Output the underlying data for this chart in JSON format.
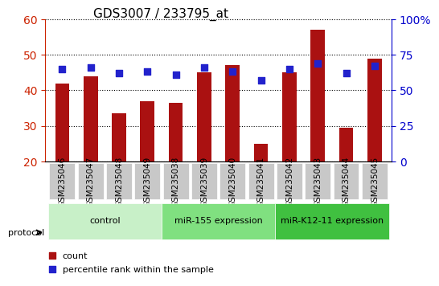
{
  "title": "GDS3007 / 233795_at",
  "samples": [
    "GSM235046",
    "GSM235047",
    "GSM235048",
    "GSM235049",
    "GSM235038",
    "GSM235039",
    "GSM235040",
    "GSM235041",
    "GSM235042",
    "GSM235043",
    "GSM235044",
    "GSM235045"
  ],
  "count_values": [
    42.0,
    44.0,
    33.5,
    37.0,
    36.5,
    45.0,
    47.0,
    25.0,
    45.0,
    57.0,
    29.5,
    49.0
  ],
  "percentile_values": [
    65,
    66,
    62,
    63,
    61,
    66,
    63,
    57,
    65,
    69,
    62,
    67
  ],
  "groups": [
    {
      "label": "control",
      "start": 0,
      "end": 4,
      "color": "#c8f0c8"
    },
    {
      "label": "miR-155 expression",
      "start": 4,
      "end": 8,
      "color": "#80e080"
    },
    {
      "label": "miR-K12-11 expression",
      "start": 8,
      "end": 12,
      "color": "#40c040"
    }
  ],
  "ylim_left": [
    20,
    60
  ],
  "ylim_right": [
    0,
    100
  ],
  "yticks_left": [
    20,
    30,
    40,
    50,
    60
  ],
  "yticks_right": [
    0,
    25,
    50,
    75,
    100
  ],
  "ytick_labels_right": [
    "0",
    "25",
    "50",
    "75",
    "100%"
  ],
  "bar_color": "#aa1111",
  "dot_color": "#2222cc",
  "bar_width": 0.5,
  "dot_size": 40,
  "grid_color": "#000000",
  "background_color": "#ffffff",
  "plot_bg_color": "#ffffff",
  "left_axis_color": "#cc2200",
  "right_axis_color": "#0000cc",
  "protocol_label": "protocol",
  "legend_count_label": "count",
  "legend_percentile_label": "percentile rank within the sample"
}
